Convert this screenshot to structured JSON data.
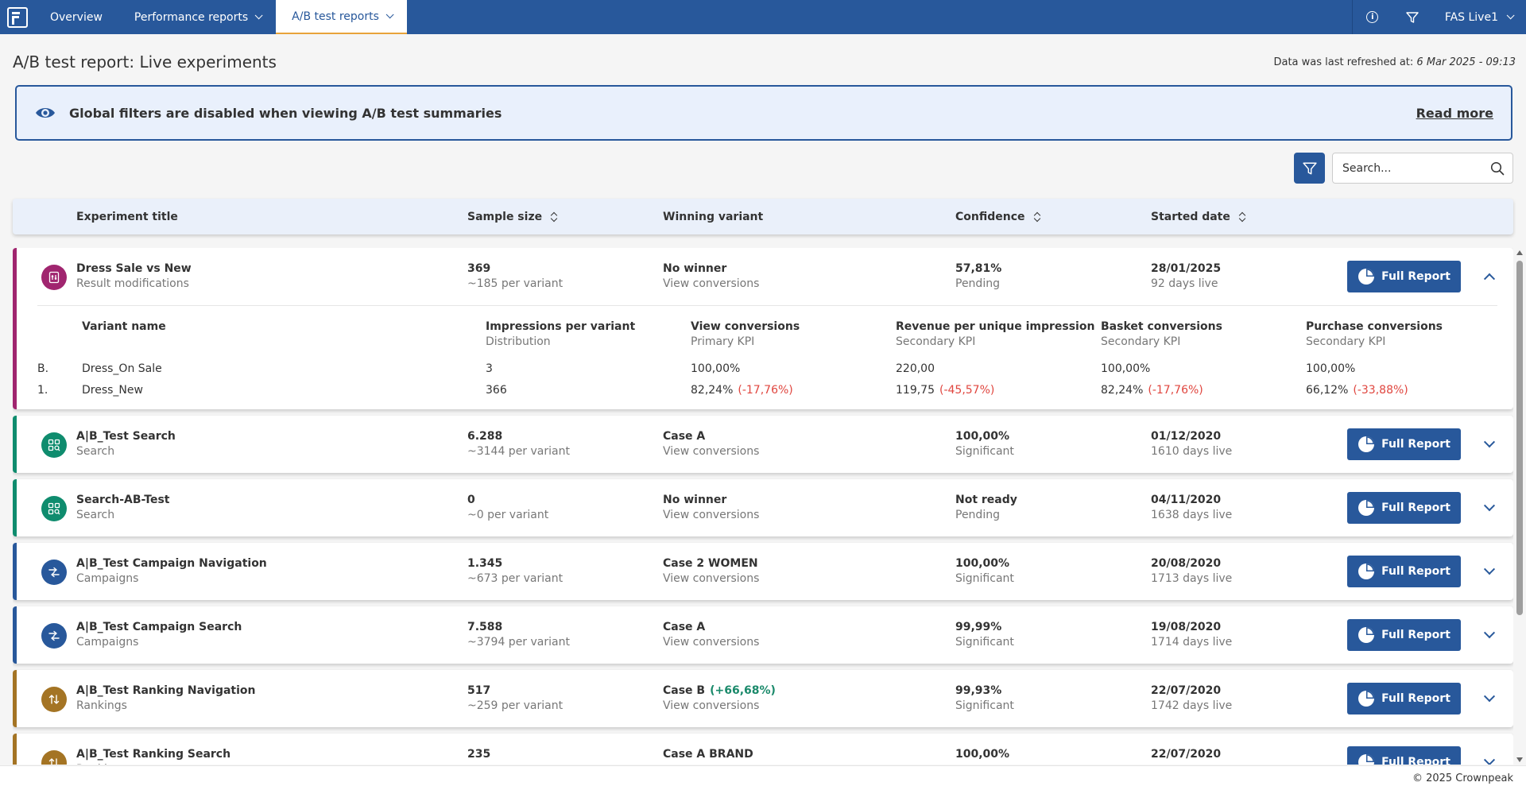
{
  "nav": {
    "items": [
      {
        "label": "Overview",
        "has_menu": false,
        "active": false
      },
      {
        "label": "Performance reports",
        "has_menu": true,
        "active": false
      },
      {
        "label": "A/B test reports",
        "has_menu": true,
        "active": true
      }
    ],
    "account": "FAS Live1"
  },
  "page": {
    "title": "A/B test report: Live experiments",
    "refreshed_label": "Data was last refreshed at:",
    "refreshed_value": "6 Mar 2025 - 09:13"
  },
  "banner": {
    "message": "Global filters are disabled when viewing A/B test summaries",
    "link": "Read more"
  },
  "search": {
    "placeholder": "Search..."
  },
  "table": {
    "headers": {
      "title": "Experiment title",
      "sample": "Sample size",
      "winner": "Winning variant",
      "confidence": "Confidence",
      "started": "Started date"
    },
    "full_report_label": "Full Report",
    "rows": [
      {
        "title": "Dress Sale vs New",
        "category": "Result modifications",
        "icon": "result-modifications-icon",
        "color": "#a0256f",
        "sample": "369",
        "per_variant": "~185 per variant",
        "winner": "No winner",
        "winner_delta": "",
        "kpi": "View conversions",
        "confidence": "57,81%",
        "confidence_status": "Pending",
        "confidence_tone": "grey",
        "started": "28/01/2025",
        "days_live": "92 days live",
        "expanded": true,
        "details": {
          "headers": [
            {
              "t": "Variant name",
              "s": ""
            },
            {
              "t": "Impressions per variant",
              "s": "Distribution"
            },
            {
              "t": "View conversions",
              "s": "Primary KPI"
            },
            {
              "t": "Revenue per unique impression",
              "s": "Secondary KPI"
            },
            {
              "t": "Basket conversions",
              "s": "Secondary KPI"
            },
            {
              "t": "Purchase conversions",
              "s": "Secondary KPI"
            }
          ],
          "variants": [
            {
              "rank": "B.",
              "name": "Dress_On Sale",
              "impressions": "3",
              "view": "100,00%",
              "view_d": "",
              "revenue": "220,00",
              "revenue_d": "",
              "basket": "100,00%",
              "basket_d": "",
              "purchase": "100,00%",
              "purchase_d": ""
            },
            {
              "rank": "1.",
              "name": "Dress_New",
              "impressions": "366",
              "view": "82,24%",
              "view_d": "(-17,76%)",
              "revenue": "119,75",
              "revenue_d": "(-45,57%)",
              "basket": "82,24%",
              "basket_d": "(-17,76%)",
              "purchase": "66,12%",
              "purchase_d": "(-33,88%)"
            }
          ]
        }
      },
      {
        "title": "A|B_Test Search",
        "category": "Search",
        "icon": "search-category-icon",
        "color": "#0f8c6e",
        "sample": "6.288",
        "per_variant": "~3144 per variant",
        "winner": "Case A",
        "winner_delta": "",
        "kpi": "View conversions",
        "confidence": "100,00%",
        "confidence_status": "Significant",
        "confidence_tone": "pos",
        "started": "01/12/2020",
        "days_live": "1610 days live",
        "expanded": false
      },
      {
        "title": "Search-AB-Test",
        "category": "Search",
        "icon": "search-category-icon",
        "color": "#0f8c6e",
        "sample": "0",
        "per_variant": "~0 per variant",
        "winner": "No winner",
        "winner_delta": "",
        "kpi": "View conversions",
        "confidence": "Not ready",
        "confidence_status": "Pending",
        "confidence_tone": "grey",
        "started": "04/11/2020",
        "days_live": "1638 days live",
        "expanded": false
      },
      {
        "title": "A|B_Test Campaign Navigation",
        "category": "Campaigns",
        "icon": "campaigns-icon",
        "color": "#28589b",
        "sample": "1.345",
        "per_variant": "~673 per variant",
        "winner": "Case 2 WOMEN",
        "winner_delta": "",
        "kpi": "View conversions",
        "confidence": "100,00%",
        "confidence_status": "Significant",
        "confidence_tone": "pos",
        "started": "20/08/2020",
        "days_live": "1713 days live",
        "expanded": false
      },
      {
        "title": "A|B_Test Campaign Search",
        "category": "Campaigns",
        "icon": "campaigns-icon",
        "color": "#28589b",
        "sample": "7.588",
        "per_variant": "~3794 per variant",
        "winner": "Case A",
        "winner_delta": "",
        "kpi": "View conversions",
        "confidence": "99,99%",
        "confidence_status": "Significant",
        "confidence_tone": "pos",
        "started": "19/08/2020",
        "days_live": "1714 days live",
        "expanded": false
      },
      {
        "title": "A|B_Test Ranking Navigation",
        "category": "Rankings",
        "icon": "rankings-icon",
        "color": "#a47424",
        "sample": "517",
        "per_variant": "~259 per variant",
        "winner": "Case B",
        "winner_delta": "(+66,68%)",
        "kpi": "View conversions",
        "confidence": "99,93%",
        "confidence_status": "Significant",
        "confidence_tone": "pos",
        "started": "22/07/2020",
        "days_live": "1742 days live",
        "expanded": false
      },
      {
        "title": "A|B_Test Ranking Search",
        "category": "Rankings",
        "icon": "rankings-icon",
        "color": "#a47424",
        "sample": "235",
        "per_variant": "",
        "winner": "Case A BRAND",
        "winner_delta": "",
        "kpi": "",
        "confidence": "100,00%",
        "confidence_status": "",
        "confidence_tone": "pos",
        "started": "22/07/2020",
        "days_live": "",
        "expanded": false
      }
    ]
  },
  "footer": {
    "copyright": "© 2025 Crownpeak"
  }
}
